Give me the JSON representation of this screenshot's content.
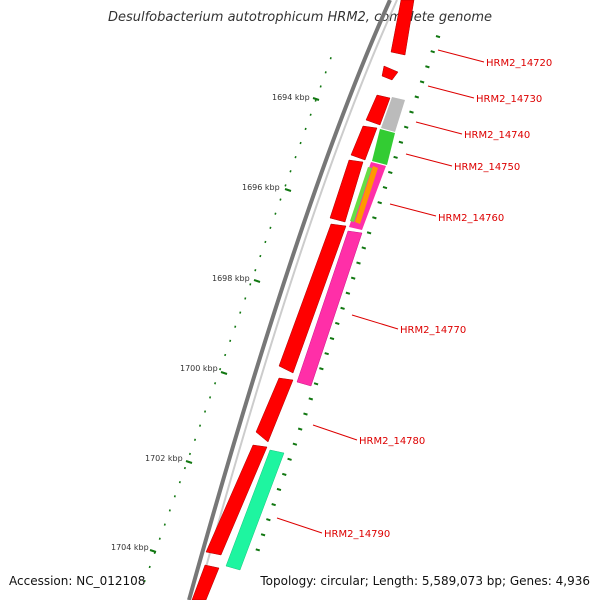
{
  "title": "Desulfobacterium autotrophicum HRM2, complete genome",
  "footer": {
    "accession": "Accession: NC_012108",
    "summary": "Topology: circular; Length: 5,589,073 bp; Genes: 4,936"
  },
  "scale": {
    "ticks": [
      {
        "label": "1694 kbp"
      },
      {
        "label": "1696 kbp"
      },
      {
        "label": "1698 kbp"
      },
      {
        "label": "1700 kbp"
      },
      {
        "label": "1702 kbp"
      },
      {
        "label": "1704 kbp"
      }
    ]
  },
  "gene_labels": [
    "HRM2_14720",
    "HRM2_14730",
    "HRM2_14740",
    "HRM2_14750",
    "HRM2_14760",
    "HRM2_14770",
    "HRM2_14780",
    "HRM2_14790"
  ],
  "colors": {
    "backbone": "#777777",
    "outer_gene": "#ff0000",
    "cog_gray": "#bbbbbb",
    "cog_green": "#33cc33",
    "cog_orange": "#ff9900",
    "cog_magenta": "#ff2fa8",
    "cog_teal": "#1ef5a0",
    "label_red": "#dd0000",
    "tick_green": "#117711"
  }
}
